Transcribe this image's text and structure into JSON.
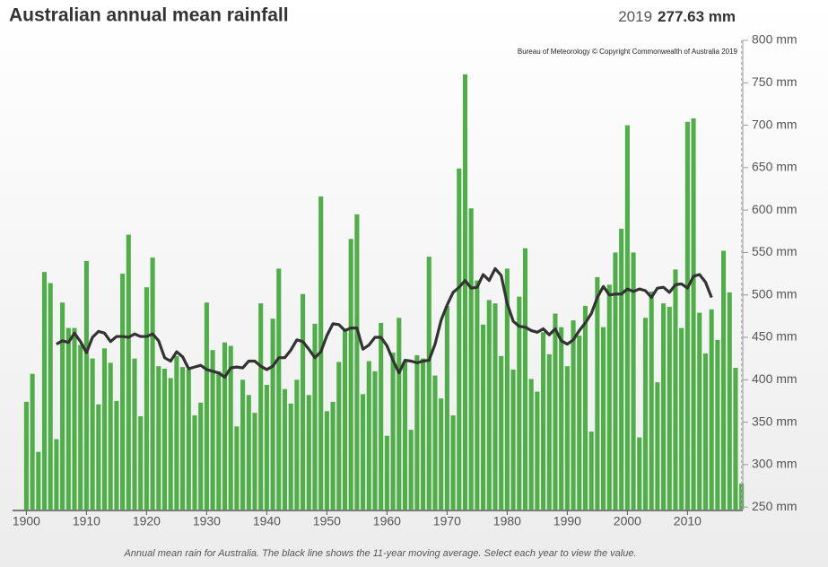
{
  "chart_data": {
    "type": "bar",
    "title": "Australian annual mean rainfall",
    "highlight": {
      "year": 2019,
      "value_label": "277.63 mm"
    },
    "source": "Bureau of Meteorology © Copyright Commonwealth of Australia 2019",
    "caption": "Annual mean rain for Australia. The black line shows the 11-year moving average. Select each year to view the value.",
    "x": [
      1900,
      1901,
      1902,
      1903,
      1904,
      1905,
      1906,
      1907,
      1908,
      1909,
      1910,
      1911,
      1912,
      1913,
      1914,
      1915,
      1916,
      1917,
      1918,
      1919,
      1920,
      1921,
      1922,
      1923,
      1924,
      1925,
      1926,
      1927,
      1928,
      1929,
      1930,
      1931,
      1932,
      1933,
      1934,
      1935,
      1936,
      1937,
      1938,
      1939,
      1940,
      1941,
      1942,
      1943,
      1944,
      1945,
      1946,
      1947,
      1948,
      1949,
      1950,
      1951,
      1952,
      1953,
      1954,
      1955,
      1956,
      1957,
      1958,
      1959,
      1960,
      1961,
      1962,
      1963,
      1964,
      1965,
      1966,
      1967,
      1968,
      1969,
      1970,
      1971,
      1972,
      1973,
      1974,
      1975,
      1976,
      1977,
      1978,
      1979,
      1980,
      1981,
      1982,
      1983,
      1984,
      1985,
      1986,
      1987,
      1988,
      1989,
      1990,
      1991,
      1992,
      1993,
      1994,
      1995,
      1996,
      1997,
      1998,
      1999,
      2000,
      2001,
      2002,
      2003,
      2004,
      2005,
      2006,
      2007,
      2008,
      2009,
      2010,
      2011,
      2012,
      2013,
      2014,
      2015,
      2016,
      2017,
      2018,
      2019
    ],
    "series": [
      {
        "type": "bar",
        "color": "#4fae48",
        "values": [
          374,
          407,
          315,
          527,
          514,
          330,
          491,
          461,
          461,
          441,
          540,
          425,
          371,
          437,
          420,
          375,
          525,
          571,
          425,
          357,
          509,
          544,
          416,
          413,
          402,
          428,
          415,
          412,
          358,
          373,
          491,
          435,
          410,
          444,
          440,
          345,
          400,
          382,
          361,
          490,
          394,
          472,
          531,
          389,
          372,
          400,
          501,
          382,
          466,
          616,
          363,
          374,
          421,
          459,
          566,
          595,
          383,
          422,
          410,
          467,
          334,
          432,
          473,
          421,
          341,
          429,
          425,
          545,
          405,
          378,
          487,
          358,
          649,
          760,
          602,
          517,
          465,
          494,
          490,
          428,
          531,
          412,
          498,
          555,
          401,
          386,
          456,
          430,
          478,
          462,
          416,
          470,
          452,
          487,
          339,
          521,
          462,
          512,
          550,
          578,
          700,
          550,
          332,
          473,
          504,
          397,
          490,
          486,
          530,
          461,
          704,
          708,
          479,
          431,
          483,
          447,
          552,
          503,
          414,
          277.63
        ]
      },
      {
        "type": "line",
        "color": "#333333",
        "values": [
          null,
          null,
          null,
          null,
          null,
          442,
          446,
          444,
          455,
          445,
          432,
          450,
          457,
          455,
          445,
          451,
          451,
          450,
          454,
          451,
          451,
          454,
          446,
          426,
          422,
          433,
          427,
          413,
          415,
          417,
          412,
          410,
          408,
          403,
          414,
          415,
          414,
          422,
          422,
          416,
          412,
          416,
          426,
          426,
          435,
          447,
          445,
          436,
          426,
          433,
          452,
          466,
          465,
          458,
          461,
          461,
          436,
          441,
          450,
          450,
          440,
          423,
          408,
          423,
          422,
          420,
          422,
          423,
          442,
          470,
          488,
          503,
          509,
          517,
          508,
          509,
          524,
          517,
          531,
          523,
          490,
          469,
          463,
          462,
          458,
          456,
          460,
          453,
          460,
          446,
          442,
          447,
          458,
          467,
          478,
          497,
          510,
          500,
          501,
          501,
          507,
          504,
          507,
          505,
          497,
          508,
          509,
          503,
          512,
          513,
          508,
          522,
          524,
          515,
          497,
          null,
          null,
          null,
          null,
          null
        ]
      }
    ],
    "xlim": [
      1897.7,
      2019.2
    ],
    "xticks": [
      1900,
      1910,
      1920,
      1930,
      1940,
      1950,
      1960,
      1970,
      1980,
      1990,
      2000,
      2010
    ],
    "ylim": [
      247,
      800
    ],
    "yticks": [
      {
        "value": 250,
        "label": "250 mm"
      },
      {
        "value": 300,
        "label": "300 mm"
      },
      {
        "value": 350,
        "label": "350 mm"
      },
      {
        "value": 400,
        "label": "400 mm"
      },
      {
        "value": 450,
        "label": "450 mm"
      },
      {
        "value": 500,
        "label": "500 mm"
      },
      {
        "value": 550,
        "label": "550 mm"
      },
      {
        "value": 600,
        "label": "600 mm"
      },
      {
        "value": 650,
        "label": "650 mm"
      },
      {
        "value": 700,
        "label": "700 mm"
      },
      {
        "value": 750,
        "label": "750 mm"
      },
      {
        "value": 800,
        "label": "800 mm"
      }
    ],
    "y_axis_side": "right"
  }
}
